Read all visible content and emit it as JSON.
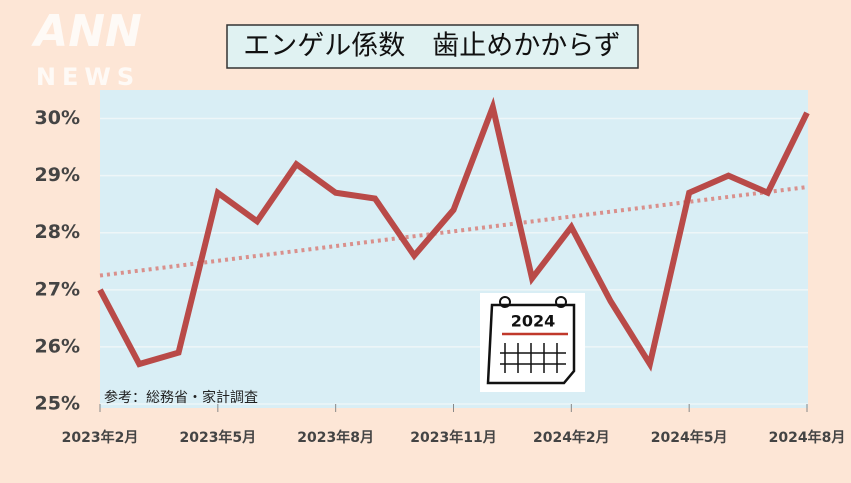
{
  "logo": {
    "top": "ANN",
    "bottom": "NEWS"
  },
  "chart_data": {
    "type": "line",
    "title": "エンゲル係数　歯止めかからず",
    "source": "参考：総務省・家計調査",
    "icon_label": "2024",
    "categories": [
      "2023年2月",
      null,
      null,
      "2023年5月",
      null,
      null,
      "2023年8月",
      null,
      null,
      "2023年11月",
      null,
      null,
      "2024年2月",
      null,
      null,
      "2024年5月",
      null,
      null,
      "2024年8月"
    ],
    "series": [
      {
        "color": "#b94a48",
        "values": [
          27.0,
          25.7,
          25.9,
          28.7,
          28.2,
          29.2,
          28.7,
          28.6,
          27.6,
          28.4,
          30.2,
          27.2,
          28.1,
          26.8,
          25.7,
          28.7,
          29.0,
          28.7,
          30.1
        ]
      }
    ],
    "trend": {
      "color": "#d9908c",
      "values": [
        27.25,
        28.8
      ]
    },
    "ylim": [
      25,
      30.5
    ],
    "yticks": [
      {
        "value": 25,
        "label": "25%"
      },
      {
        "value": 26,
        "label": "26%"
      },
      {
        "value": 27,
        "label": "27%"
      },
      {
        "value": 28,
        "label": "28%"
      },
      {
        "value": 29,
        "label": "29%"
      },
      {
        "value": 30,
        "label": "30%"
      }
    ],
    "grid": true
  }
}
